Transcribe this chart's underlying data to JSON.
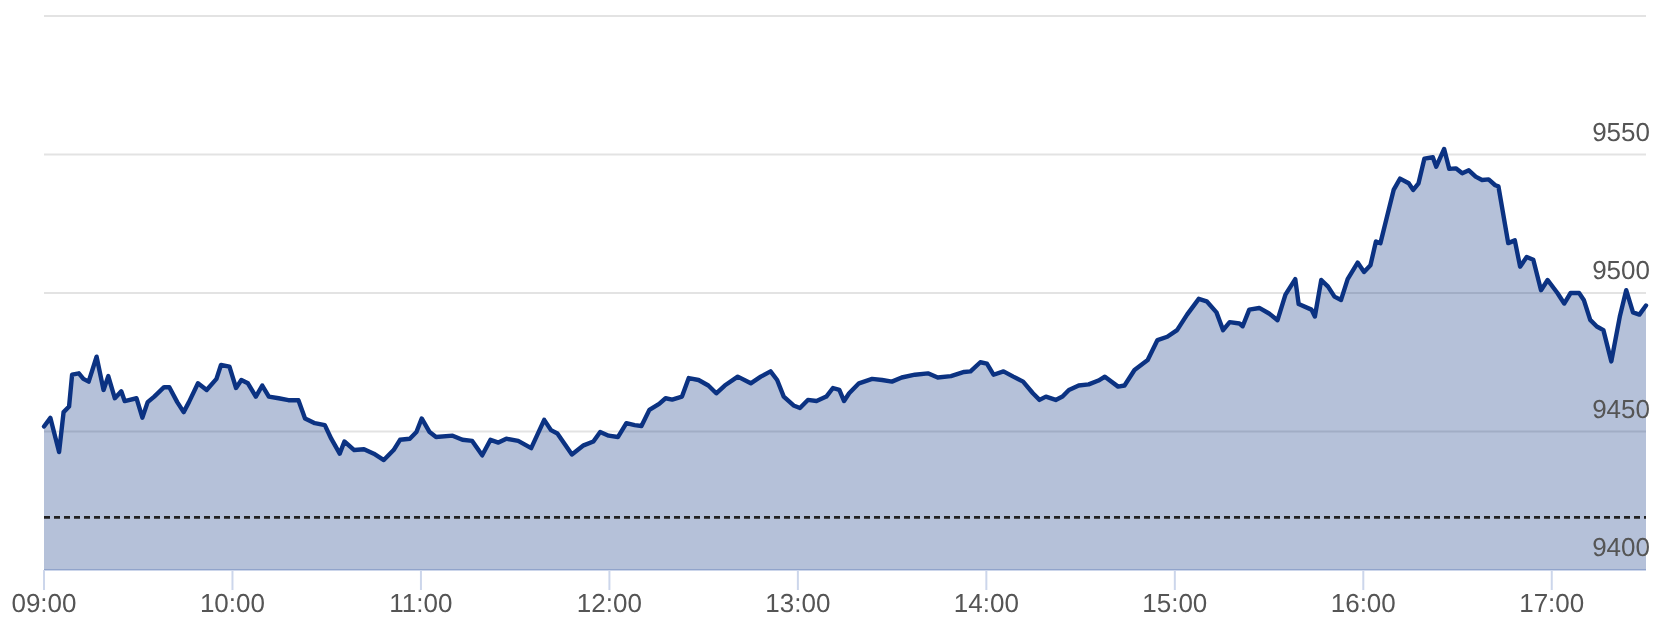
{
  "chart_data": {
    "type": "area",
    "x": [
      9.0,
      9.034,
      9.08,
      9.104,
      9.133,
      9.149,
      9.185,
      9.209,
      9.237,
      9.279,
      9.316,
      9.341,
      9.376,
      9.41,
      9.428,
      9.491,
      9.522,
      9.55,
      9.585,
      9.637,
      9.665,
      9.707,
      9.741,
      9.769,
      9.817,
      9.863,
      9.915,
      9.939,
      9.984,
      10.019,
      10.047,
      10.082,
      10.124,
      10.158,
      10.193,
      10.245,
      10.297,
      10.35,
      10.385,
      10.437,
      10.49,
      10.524,
      10.569,
      10.594,
      10.646,
      10.698,
      10.75,
      10.803,
      10.855,
      10.889,
      10.941,
      10.976,
      11.004,
      11.046,
      11.08,
      11.168,
      11.22,
      11.272,
      11.325,
      11.369,
      11.411,
      11.453,
      11.516,
      11.585,
      11.654,
      11.69,
      11.724,
      11.801,
      11.863,
      11.915,
      11.951,
      11.996,
      12.045,
      12.09,
      12.134,
      12.17,
      12.212,
      12.264,
      12.298,
      12.333,
      12.385,
      12.421,
      12.473,
      12.525,
      12.567,
      12.612,
      12.681,
      12.75,
      12.803,
      12.855,
      12.89,
      12.925,
      12.977,
      13.011,
      13.053,
      13.099,
      13.151,
      13.186,
      13.22,
      13.245,
      13.272,
      13.324,
      13.394,
      13.447,
      13.499,
      13.551,
      13.621,
      13.69,
      13.742,
      13.812,
      13.882,
      13.916,
      13.968,
      14.003,
      14.038,
      14.091,
      14.143,
      14.195,
      14.247,
      14.282,
      14.316,
      14.368,
      14.404,
      14.438,
      14.49,
      14.543,
      14.595,
      14.629,
      14.699,
      14.733,
      14.786,
      14.856,
      14.908,
      14.96,
      15.012,
      15.065,
      15.127,
      15.169,
      15.221,
      15.256,
      15.291,
      15.343,
      15.36,
      15.395,
      15.448,
      15.5,
      15.545,
      15.587,
      15.639,
      15.657,
      15.725,
      15.743,
      15.777,
      15.813,
      15.847,
      15.882,
      15.917,
      15.97,
      16.004,
      16.038,
      16.067,
      16.091,
      16.126,
      16.161,
      16.195,
      16.241,
      16.265,
      16.293,
      16.324,
      16.369,
      16.387,
      16.429,
      16.456,
      16.491,
      16.525,
      16.56,
      16.596,
      16.63,
      16.665,
      16.7,
      16.717,
      16.769,
      16.804,
      16.832,
      16.867,
      16.902,
      16.943,
      16.978,
      17.03,
      17.066,
      17.1,
      17.145,
      17.17,
      17.204,
      17.239,
      17.274,
      17.316,
      17.361,
      17.395,
      17.431,
      17.465,
      17.5
    ],
    "series": [
      {
        "color": "#0b3282",
        "values": [
          9451.8,
          9454.9,
          9442.6,
          9457,
          9459,
          9470.5,
          9471,
          9469,
          9468,
          9477,
          9465,
          9470,
          9462,
          9464.5,
          9461,
          9462,
          9455,
          9460.6,
          9462.6,
          9466,
          9466,
          9460.6,
          9457,
          9460.6,
          9467.4,
          9465,
          9469,
          9474,
          9473.4,
          9465.7,
          9468.6,
          9467.4,
          9462.6,
          9466.6,
          9462.6,
          9462,
          9461.3,
          9461.3,
          9454.7,
          9453,
          9452.3,
          9447.4,
          9442,
          9446.4,
          9443.3,
          9443.6,
          9442,
          9439.7,
          9443.3,
          9447,
          9447.4,
          9449.8,
          9454.7,
          9449.8,
          9448,
          9448.5,
          9447,
          9446.6,
          9441.4,
          9447,
          9446,
          9447.4,
          9446.6,
          9444,
          9454.2,
          9450.5,
          9449.3,
          9441.7,
          9445,
          9446.4,
          9449.8,
          9448.5,
          9448,
          9453,
          9452.3,
          9452,
          9457.8,
          9460,
          9462,
          9461.5,
          9462.6,
          9469.3,
          9468.6,
          9466.6,
          9463.8,
          9466.6,
          9469.8,
          9467.4,
          9469.8,
          9471.7,
          9468.6,
          9462.6,
          9459.4,
          9458.5,
          9461.4,
          9461,
          9462.6,
          9465.7,
          9465,
          9461,
          9463.8,
          9467.4,
          9469,
          9468.6,
          9468,
          9469.5,
          9470.5,
          9471,
          9469.5,
          9470,
          9471.5,
          9471.7,
          9475,
          9474.5,
          9470.5,
          9471.7,
          9469.8,
          9468,
          9463.8,
          9461.4,
          9462.6,
          9461.4,
          9462.6,
          9465,
          9466.6,
          9467,
          9468.4,
          9469.8,
          9466.2,
          9466.6,
          9472.2,
          9475.8,
          9483,
          9484.2,
          9486.6,
          9492.2,
          9497.9,
          9497,
          9493,
          9486.6,
          9489.5,
          9489,
          9488,
          9494,
          9494.6,
          9492.6,
          9490.2,
          9499.4,
          9505,
          9496,
          9494,
          9491.5,
          9504.7,
          9502.3,
          9498.7,
          9497.5,
          9505,
          9511,
          9507.6,
          9510,
          9518.6,
          9518,
          9527.6,
          9537.2,
          9541.3,
          9539.6,
          9537.2,
          9539.6,
          9548.5,
          9549,
          9545.6,
          9552,
          9544.8,
          9545,
          9543.2,
          9544.3,
          9542,
          9540.8,
          9541,
          9538.9,
          9538.5,
          9518,
          9519,
          9509.5,
          9513,
          9512,
          9501,
          9504.7,
          9500,
          9496.2,
          9500,
          9500,
          9497.5,
          9490.3,
          9487.9,
          9486.6,
          9475.3,
          9491.5,
          9501,
          9493,
          9492.2,
          9495.5
        ]
      }
    ],
    "xlim": [
      9,
      17.5
    ],
    "xticks": [
      {
        "value": 9,
        "label": "09:00"
      },
      {
        "value": 10,
        "label": "10:00"
      },
      {
        "value": 11,
        "label": "11:00"
      },
      {
        "value": 12,
        "label": "12:00"
      },
      {
        "value": 13,
        "label": "13:00"
      },
      {
        "value": 14,
        "label": "14:00"
      },
      {
        "value": 15,
        "label": "15:00"
      },
      {
        "value": 16,
        "label": "16:00"
      },
      {
        "value": 17,
        "label": "17:00"
      }
    ],
    "ylim": [
      9400,
      9600
    ],
    "yticks": [
      9400,
      9450,
      9500,
      9550,
      {
        "value": 9600,
        "label": null
      }
    ],
    "grid": "y",
    "ref_lines": [
      {
        "axis": "y",
        "value": 9419,
        "color": "#222222",
        "line_style": "dashed"
      }
    ]
  }
}
